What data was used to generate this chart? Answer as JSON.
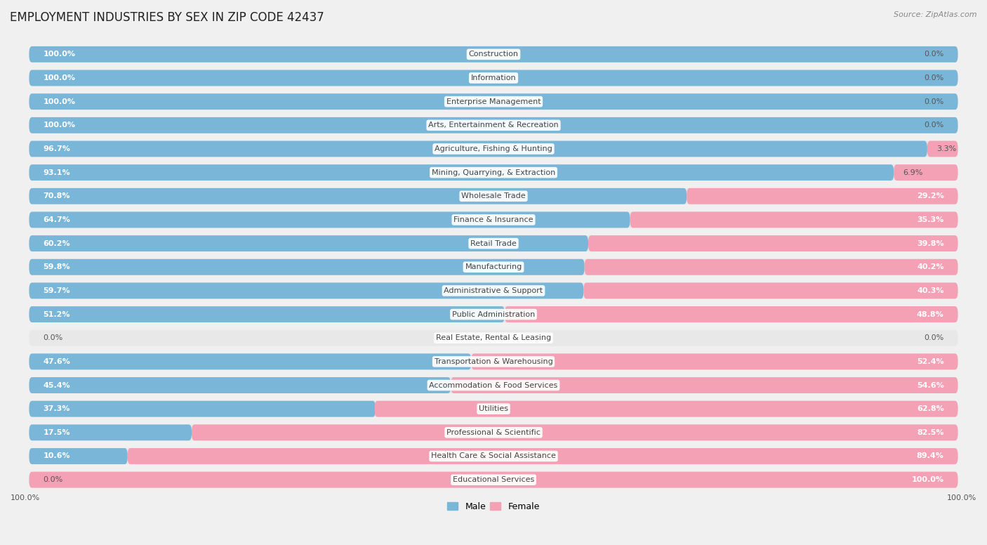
{
  "title": "EMPLOYMENT INDUSTRIES BY SEX IN ZIP CODE 42437",
  "source": "Source: ZipAtlas.com",
  "industries": [
    "Construction",
    "Information",
    "Enterprise Management",
    "Arts, Entertainment & Recreation",
    "Agriculture, Fishing & Hunting",
    "Mining, Quarrying, & Extraction",
    "Wholesale Trade",
    "Finance & Insurance",
    "Retail Trade",
    "Manufacturing",
    "Administrative & Support",
    "Public Administration",
    "Real Estate, Rental & Leasing",
    "Transportation & Warehousing",
    "Accommodation & Food Services",
    "Utilities",
    "Professional & Scientific",
    "Health Care & Social Assistance",
    "Educational Services"
  ],
  "male": [
    100.0,
    100.0,
    100.0,
    100.0,
    96.7,
    93.1,
    70.8,
    64.7,
    60.2,
    59.8,
    59.7,
    51.2,
    0.0,
    47.6,
    45.4,
    37.3,
    17.5,
    10.6,
    0.0
  ],
  "female": [
    0.0,
    0.0,
    0.0,
    0.0,
    3.3,
    6.9,
    29.2,
    35.3,
    39.8,
    40.2,
    40.3,
    48.8,
    0.0,
    52.4,
    54.6,
    62.8,
    82.5,
    89.4,
    100.0
  ],
  "male_color": "#7ab6d8",
  "female_color": "#f4a0b5",
  "bg_color": "#f0f0f0",
  "row_bg_color": "#e8e8e8",
  "title_fontsize": 12,
  "label_fontsize": 8.0,
  "pct_fontsize": 8.0,
  "source_fontsize": 8,
  "legend_fontsize": 9
}
